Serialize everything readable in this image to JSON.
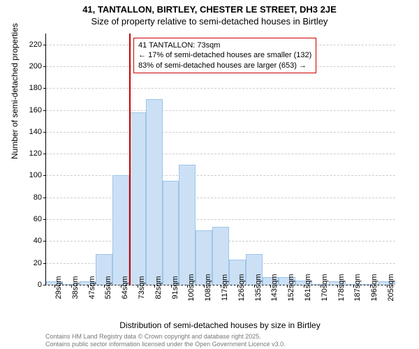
{
  "title_main": "41, TANTALLON, BIRTLEY, CHESTER LE STREET, DH3 2JE",
  "title_sub": "Size of property relative to semi-detached houses in Birtley",
  "ylabel": "Number of semi-detached properties",
  "xlabel": "Distribution of semi-detached houses by size in Birtley",
  "histogram": {
    "type": "histogram",
    "categories": [
      "29sqm",
      "38sqm",
      "47sqm",
      "55sqm",
      "64sqm",
      "73sqm",
      "82sqm",
      "91sqm",
      "100sqm",
      "108sqm",
      "117sqm",
      "126sqm",
      "135sqm",
      "143sqm",
      "152sqm",
      "161sqm",
      "170sqm",
      "178sqm",
      "187sqm",
      "196sqm",
      "205sqm"
    ],
    "values": [
      3,
      0,
      3,
      28,
      100,
      158,
      170,
      95,
      110,
      50,
      53,
      23,
      28,
      7,
      7,
      4,
      0,
      3,
      0,
      0,
      3
    ],
    "bar_fill": "#cce0f5",
    "bar_stroke": "#9ec5e8",
    "ylim": [
      0,
      230
    ],
    "yticks": [
      0,
      20,
      40,
      60,
      80,
      100,
      120,
      140,
      160,
      180,
      200,
      220
    ],
    "grid_color": "#cccccc",
    "background": "#ffffff"
  },
  "marker": {
    "color": "#cc0000",
    "category_index": 5,
    "label_line1": "← 17% of semi-detached houses are smaller (132)",
    "label_line2": "83% of semi-detached houses are larger (653) →",
    "label_title": "41 TANTALLON: 73sqm",
    "box_border": "#cc0000"
  },
  "attribution_line1": "Contains HM Land Registry data © Crown copyright and database right 2025.",
  "attribution_line2": "Contains public sector information licensed under the Open Government Licence v3.0."
}
